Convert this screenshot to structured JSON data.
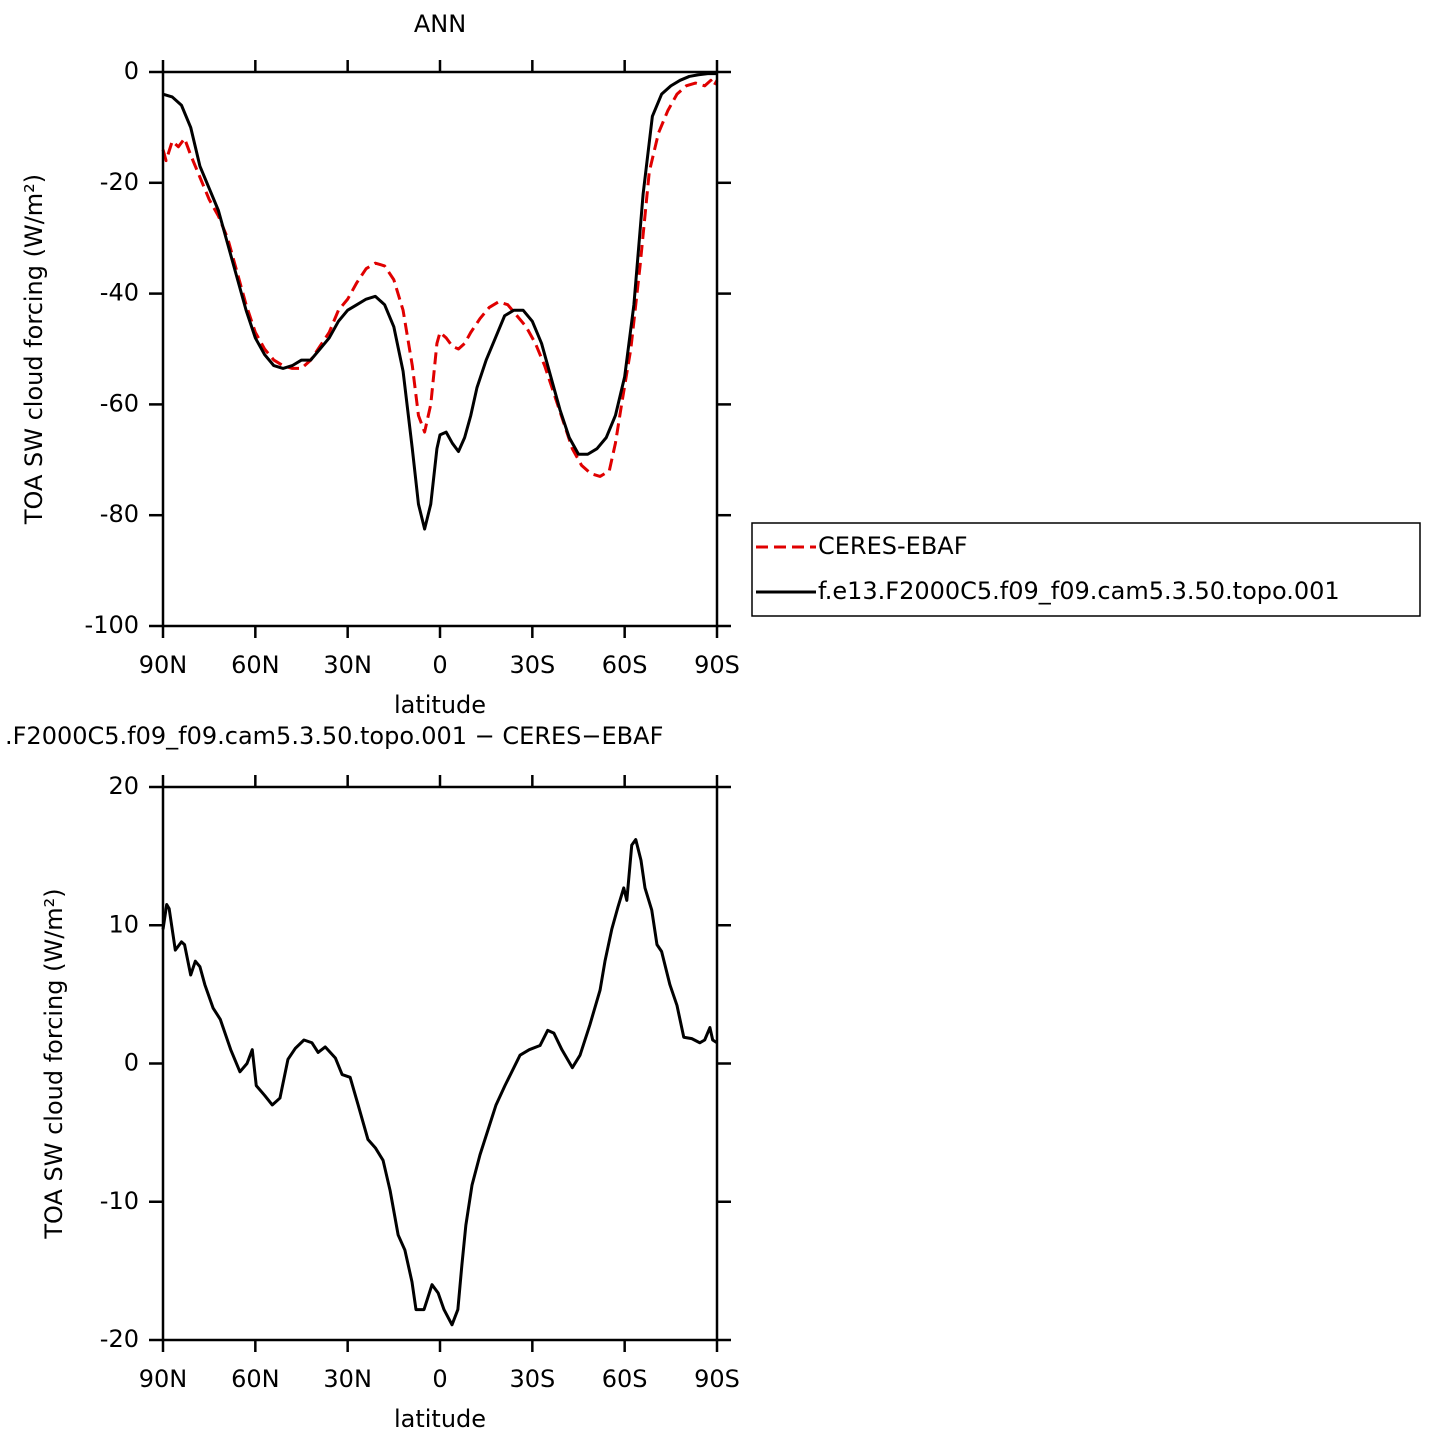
{
  "chart_data": [
    {
      "type": "line",
      "title": "ANN",
      "xlabel": "latitude",
      "ylabel": "TOA SW cloud forcing (W/m²)",
      "xlim": [
        90,
        -90
      ],
      "ylim": [
        -100,
        0
      ],
      "xticks": [
        {
          "value": 90,
          "label": "90N"
        },
        {
          "value": 60,
          "label": "60N"
        },
        {
          "value": 30,
          "label": "30N"
        },
        0,
        {
          "value": -30,
          "label": "30S"
        },
        {
          "value": -60,
          "label": "60S"
        },
        {
          "value": -90,
          "label": "90S"
        }
      ],
      "yticks": [
        -100,
        -80,
        -60,
        -40,
        -20,
        0
      ],
      "legend": "right",
      "series": [
        {
          "name": "CERES-EBAF",
          "color": "#e00000",
          "linestyle": "dashed",
          "x": [
            90,
            89,
            87,
            85,
            83,
            81,
            78,
            75,
            72,
            69,
            66,
            63,
            60,
            57,
            54,
            51,
            48,
            45,
            42,
            39,
            36,
            33,
            30,
            27,
            24,
            21,
            18,
            15,
            12,
            9,
            7,
            5,
            3,
            1,
            0,
            -2,
            -4,
            -6,
            -8,
            -10,
            -13,
            -16,
            -19,
            -22,
            -25,
            -28,
            -31,
            -34,
            -37,
            -40,
            -43,
            -46,
            -49,
            -52,
            -55,
            -57,
            -59,
            -62,
            -65,
            -68,
            -71,
            -74,
            -77,
            -80,
            -83,
            -86,
            -88,
            -89,
            -90
          ],
          "values": [
            -14,
            -16,
            -12.5,
            -13.5,
            -12,
            -15,
            -19,
            -23,
            -26,
            -30,
            -36,
            -42,
            -47,
            -50,
            -52,
            -53,
            -53.5,
            -53.5,
            -52,
            -49.5,
            -47,
            -43,
            -41,
            -38,
            -35.5,
            -34.5,
            -35,
            -37.5,
            -43,
            -53,
            -62,
            -65,
            -60,
            -49,
            -47,
            -48,
            -49.5,
            -50,
            -49,
            -47,
            -44.5,
            -42.5,
            -41.5,
            -42,
            -44,
            -46,
            -49,
            -53,
            -58,
            -63,
            -68,
            -71,
            -72.5,
            -73,
            -72,
            -67,
            -60,
            -50,
            -35,
            -18,
            -11,
            -7,
            -4,
            -2.5,
            -2,
            -2.5,
            -1.5,
            -2.5,
            -1.5
          ]
        },
        {
          "name": "f.e13.F2000C5.f09_f09.cam5.3.50.topo.001",
          "color": "#000000",
          "linestyle": "solid",
          "x": [
            90,
            87,
            84,
            81,
            78,
            75,
            72,
            69,
            66,
            63,
            60,
            57,
            54,
            51,
            48,
            45,
            42,
            39,
            36,
            33,
            30,
            27,
            24,
            21,
            18,
            15,
            12,
            9,
            7,
            5,
            3,
            1,
            0,
            -2,
            -4,
            -6,
            -8,
            -10,
            -12,
            -15,
            -18,
            -21,
            -24,
            -27,
            -30,
            -33,
            -36,
            -39,
            -42,
            -45,
            -48,
            -51,
            -54,
            -57,
            -60,
            -63,
            -66,
            -69,
            -72,
            -75,
            -78,
            -81,
            -84,
            -87,
            -90
          ],
          "values": [
            -4,
            -4.5,
            -6,
            -10,
            -17,
            -21,
            -25,
            -31,
            -37,
            -43,
            -48,
            -51,
            -53,
            -53.5,
            -53,
            -52,
            -52,
            -50,
            -48,
            -45,
            -43,
            -42,
            -41,
            -40.5,
            -42,
            -46,
            -54,
            -68,
            -78,
            -82.5,
            -78,
            -68,
            -65.5,
            -65,
            -67,
            -68.5,
            -66,
            -62,
            -57,
            -52,
            -48,
            -44,
            -43,
            -43,
            -45,
            -49,
            -55,
            -61,
            -66,
            -69,
            -69,
            -68,
            -66,
            -62,
            -55,
            -42,
            -22,
            -8,
            -4,
            -2.5,
            -1.5,
            -0.8,
            -0.5,
            -0.3,
            -0.3
          ]
        }
      ]
    },
    {
      "type": "line",
      "title": ".F2000C5.f09_f09.cam5.3.50.topo.001 − CERES−EBAF",
      "xlabel": "latitude",
      "ylabel": "TOA SW cloud forcing (W/m²)",
      "xlim": [
        90,
        -90
      ],
      "ylim": [
        -20,
        20
      ],
      "xticks": [
        {
          "value": 90,
          "label": "90N"
        },
        {
          "value": 60,
          "label": "60N"
        },
        {
          "value": 30,
          "label": "30N"
        },
        0,
        {
          "value": -30,
          "label": "30S"
        },
        {
          "value": -60,
          "label": "60S"
        },
        {
          "value": -90,
          "label": "90S"
        }
      ],
      "yticks": [
        -20,
        -10,
        0,
        10,
        20
      ],
      "series": [
        {
          "color": "#000000",
          "linestyle": "solid",
          "x": [
            90,
            88.8,
            88,
            86,
            84,
            83,
            81,
            79.5,
            78,
            76.4,
            73.7,
            71.4,
            68,
            65,
            62.7,
            61,
            59.7,
            57,
            54.5,
            52,
            49.4,
            47,
            44.2,
            41.6,
            39.6,
            37.3,
            34,
            31.8,
            29.2,
            26.6,
            23.4,
            21,
            18.5,
            16.2,
            13.6,
            11.4,
            9.1,
            7.8,
            5.2,
            2.6,
            0.6,
            -1.3,
            -3.9,
            -5.8,
            -7.1,
            -8.4,
            -10.4,
            -13,
            -15.6,
            -18.2,
            -21.1,
            -26,
            -29,
            -32.5,
            -35,
            -37,
            -39.6,
            -43,
            -45.5,
            -48.7,
            -52,
            -53.6,
            -55.8,
            -57.8,
            -59.7,
            -60.7,
            -62.3,
            -63.6,
            -65.3,
            -66.6,
            -68.8,
            -70.5,
            -72,
            -74.7,
            -77,
            -79.2,
            -81.8,
            -84.4,
            -86,
            -87.7,
            -88.6,
            -90
          ],
          "values": [
            9.7,
            11.5,
            11.2,
            8.2,
            8.8,
            8.6,
            6.4,
            7.4,
            7.0,
            5.7,
            4.0,
            3.2,
            1.0,
            -0.6,
            0,
            1.0,
            -1.6,
            -2.3,
            -3.0,
            -2.5,
            0.3,
            1.1,
            1.7,
            1.5,
            0.8,
            1.2,
            0.4,
            -0.8,
            -1.0,
            -3.0,
            -5.5,
            -6.1,
            -7.0,
            -9.2,
            -12.4,
            -13.5,
            -15.8,
            -17.8,
            -17.8,
            -16,
            -16.6,
            -17.8,
            -18.9,
            -17.8,
            -14.6,
            -11.7,
            -8.8,
            -6.6,
            -4.8,
            -3.0,
            -1.6,
            0.6,
            1.0,
            1.3,
            2.4,
            2.2,
            1.0,
            -0.3,
            0.6,
            2.8,
            5.3,
            7.4,
            9.7,
            11.3,
            12.7,
            11.8,
            15.8,
            16.2,
            14.7,
            12.7,
            11.1,
            8.6,
            8.1,
            5.7,
            4.2,
            1.9,
            1.8,
            1.5,
            1.7,
            2.6,
            1.7,
            1.5
          ]
        }
      ]
    }
  ]
}
